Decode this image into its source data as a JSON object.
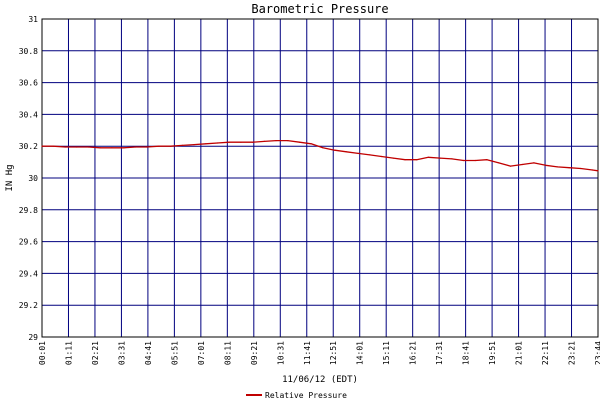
{
  "chart_data": {
    "type": "line",
    "title": "Barometric Pressure",
    "xlabel": "11/06/12 (EDT)",
    "ylabel": "IN Hg",
    "ylim": [
      29,
      31
    ],
    "yticks": [
      "29",
      "29.2",
      "29.4",
      "29.6",
      "29.8",
      "30",
      "30.2",
      "30.4",
      "30.6",
      "30.8",
      "31"
    ],
    "xticks": [
      "00:01",
      "01:11",
      "02:21",
      "03:31",
      "04:41",
      "05:51",
      "07:01",
      "08:11",
      "09:21",
      "10:31",
      "11:41",
      "12:51",
      "14:01",
      "15:11",
      "16:21",
      "17:31",
      "18:41",
      "19:51",
      "21:01",
      "22:11",
      "23:21",
      "23:44"
    ],
    "x_hours_range": [
      0.0167,
      23.733
    ],
    "grid": true,
    "legend_position": "bottom-center",
    "series": [
      {
        "name": "Relative Pressure",
        "color": "#c00000",
        "x_hours": [
          0.0167,
          0.5,
          1.0,
          1.5,
          2.0,
          2.5,
          3.0,
          3.5,
          4.0,
          4.5,
          5.0,
          5.5,
          6.0,
          6.5,
          7.0,
          7.5,
          8.0,
          8.5,
          9.0,
          9.5,
          10.0,
          10.5,
          11.0,
          11.5,
          12.0,
          12.5,
          13.0,
          13.5,
          14.0,
          14.5,
          15.0,
          15.5,
          16.0,
          16.5,
          17.0,
          17.5,
          18.0,
          18.5,
          19.0,
          19.5,
          20.0,
          20.5,
          21.0,
          21.5,
          22.0,
          22.5,
          23.0,
          23.5,
          23.733
        ],
        "values": [
          30.2,
          30.2,
          30.195,
          30.195,
          30.195,
          30.19,
          30.19,
          30.19,
          30.195,
          30.195,
          30.2,
          30.2,
          30.205,
          30.21,
          30.215,
          30.22,
          30.225,
          30.225,
          30.225,
          30.23,
          30.235,
          30.235,
          30.225,
          30.215,
          30.19,
          30.175,
          30.165,
          30.155,
          30.145,
          30.135,
          30.125,
          30.115,
          30.115,
          30.13,
          30.125,
          30.12,
          30.11,
          30.11,
          30.115,
          30.095,
          30.075,
          30.085,
          30.095,
          30.08,
          30.07,
          30.065,
          30.06,
          30.05,
          30.045
        ]
      }
    ]
  }
}
